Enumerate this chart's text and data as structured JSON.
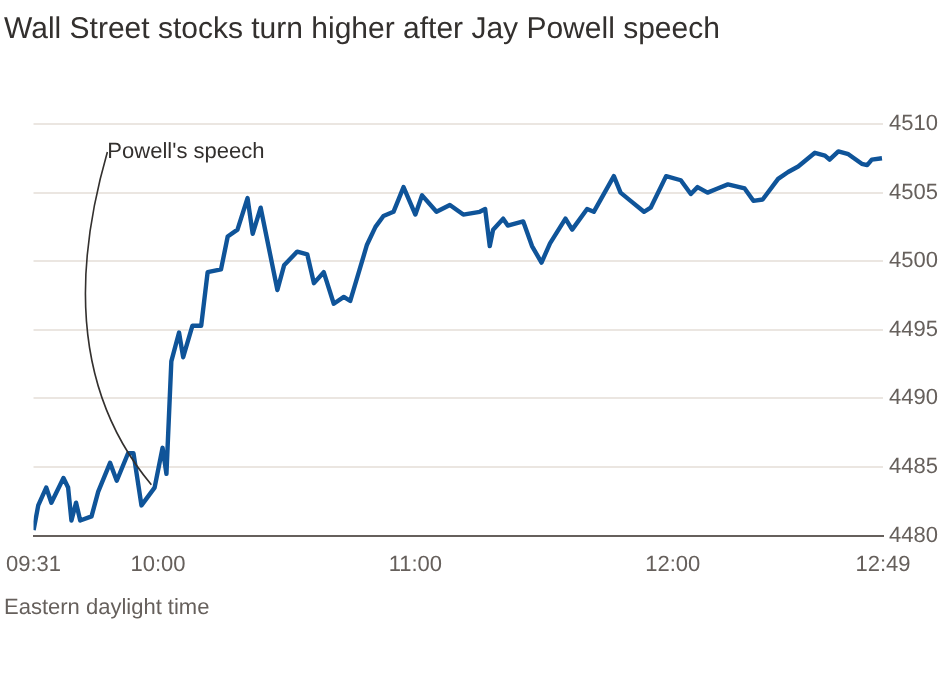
{
  "chart_data": {
    "type": "line",
    "title": "Wall Street stocks turn higher after Jay Powell speech",
    "xlim": [
      9.5167,
      12.8167
    ],
    "xticks": [
      {
        "value": 9.5167,
        "label": "09:31"
      },
      {
        "value": 10,
        "label": "10:00"
      },
      {
        "value": 11,
        "label": "11:00"
      },
      {
        "value": 12,
        "label": "12:00"
      },
      {
        "value": 12.8167,
        "label": "12:49"
      }
    ],
    "ylim": [
      4480,
      4510
    ],
    "yticks": [
      4480,
      4485,
      4490,
      4495,
      4500,
      4505,
      4510
    ],
    "grid": "y",
    "legend": false,
    "marker": "none",
    "line_style": "solid",
    "series": [
      {
        "color": "#0f5499",
        "x": [
          9.517,
          9.535,
          9.566,
          9.586,
          9.633,
          9.651,
          9.664,
          9.682,
          9.698,
          9.742,
          9.768,
          9.814,
          9.84,
          9.884,
          9.905,
          9.936,
          9.987,
          10.018,
          10.033,
          10.052,
          10.082,
          10.098,
          10.134,
          10.168,
          10.193,
          10.245,
          10.271,
          10.309,
          10.348,
          10.368,
          10.399,
          10.464,
          10.49,
          10.541,
          10.58,
          10.606,
          10.644,
          10.683,
          10.722,
          10.747,
          10.812,
          10.845,
          10.876,
          10.915,
          10.954,
          11,
          11.026,
          11.082,
          11.134,
          11.186,
          11.25,
          11.271,
          11.289,
          11.302,
          11.341,
          11.359,
          11.419,
          11.453,
          11.49,
          11.523,
          11.583,
          11.609,
          11.667,
          11.693,
          11.771,
          11.797,
          11.836,
          11.888,
          11.914,
          11.974,
          12.031,
          12.07,
          12.096,
          12.135,
          12.174,
          12.214,
          12.279,
          12.313,
          12.349,
          12.409,
          12.448,
          12.487,
          12.552,
          12.591,
          12.609,
          12.643,
          12.682,
          12.734,
          12.755,
          12.773,
          12.8125
        ],
        "values": [
          4480.4,
          4482.2,
          4483.5,
          4482.4,
          4484.2,
          4483.5,
          4481.1,
          4482.4,
          4481.1,
          4481.4,
          4483.2,
          4485.3,
          4484,
          4486,
          4486,
          4482.2,
          4483.5,
          4486.4,
          4484.5,
          4492.7,
          4494.8,
          4493,
          4495.3,
          4495.3,
          4499.2,
          4499.4,
          4501.8,
          4502.3,
          4504.6,
          4502,
          4503.9,
          4497.9,
          4499.7,
          4500.7,
          4500.5,
          4498.4,
          4499.2,
          4496.9,
          4497.4,
          4497.1,
          4501.2,
          4502.5,
          4503.3,
          4503.6,
          4505.4,
          4503.4,
          4504.8,
          4503.6,
          4504.1,
          4503.4,
          4503.6,
          4503.8,
          4501.1,
          4502.3,
          4503.1,
          4502.6,
          4502.9,
          4501.1,
          4499.9,
          4501.3,
          4503.1,
          4502.3,
          4503.8,
          4503.6,
          4506.2,
          4505,
          4504.4,
          4503.6,
          4503.9,
          4506.2,
          4505.9,
          4504.9,
          4505.4,
          4505,
          4505.3,
          4505.6,
          4505.3,
          4504.4,
          4504.5,
          4506,
          4506.5,
          4506.9,
          4507.9,
          4507.7,
          4507.4,
          4508,
          4507.8,
          4507.1,
          4507,
          4507.4,
          4507.5
        ]
      }
    ],
    "annotations": [
      {
        "text": "Powell's speech",
        "x": 9.99,
        "y": 4484
      },
      "Eastern daylight time"
    ]
  }
}
